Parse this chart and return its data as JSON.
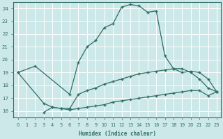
{
  "xlabel": "Humidex (Indice chaleur)",
  "xlim": [
    -0.5,
    23.5
  ],
  "ylim": [
    15.5,
    24.5
  ],
  "yticks": [
    16,
    17,
    18,
    19,
    20,
    21,
    22,
    23,
    24
  ],
  "xticks": [
    0,
    1,
    2,
    3,
    4,
    5,
    6,
    7,
    8,
    9,
    10,
    11,
    12,
    13,
    14,
    15,
    16,
    17,
    18,
    19,
    20,
    21,
    22,
    23
  ],
  "bg_color": "#cde8e8",
  "grid_color": "#b0d0d0",
  "line_color": "#2e6e65",
  "line1_x": [
    0,
    2,
    6,
    7,
    8,
    9,
    10,
    11,
    12,
    13,
    14,
    15,
    16,
    17,
    18,
    19,
    20,
    21,
    22,
    23
  ],
  "line1_y": [
    19,
    19.5,
    17.3,
    19.8,
    21.0,
    21.5,
    22.5,
    22.8,
    24.1,
    24.3,
    24.2,
    23.7,
    23.8,
    20.3,
    19.3,
    19.0,
    19.1,
    19.0,
    18.5,
    17.5
  ],
  "line2_x": [
    0,
    3,
    4,
    5,
    6,
    7,
    8,
    9,
    10,
    11,
    12,
    13,
    14,
    15,
    16,
    17,
    18,
    19,
    20,
    21,
    22,
    23
  ],
  "line2_y": [
    19,
    16.6,
    16.3,
    16.2,
    16.2,
    17.3,
    17.6,
    17.8,
    18.1,
    18.3,
    18.5,
    18.7,
    18.9,
    19.0,
    19.1,
    19.2,
    19.3,
    19.3,
    19.0,
    18.5,
    17.8,
    17.5
  ],
  "line3_x": [
    3,
    4,
    5,
    6,
    7,
    8,
    9,
    10,
    11,
    12,
    13,
    14,
    15,
    16,
    17,
    18,
    19,
    20,
    21,
    22,
    23
  ],
  "line3_y": [
    15.9,
    16.3,
    16.2,
    16.1,
    16.2,
    16.3,
    16.4,
    16.5,
    16.7,
    16.8,
    16.9,
    17.0,
    17.1,
    17.2,
    17.3,
    17.4,
    17.5,
    17.6,
    17.6,
    17.2,
    17.5
  ]
}
